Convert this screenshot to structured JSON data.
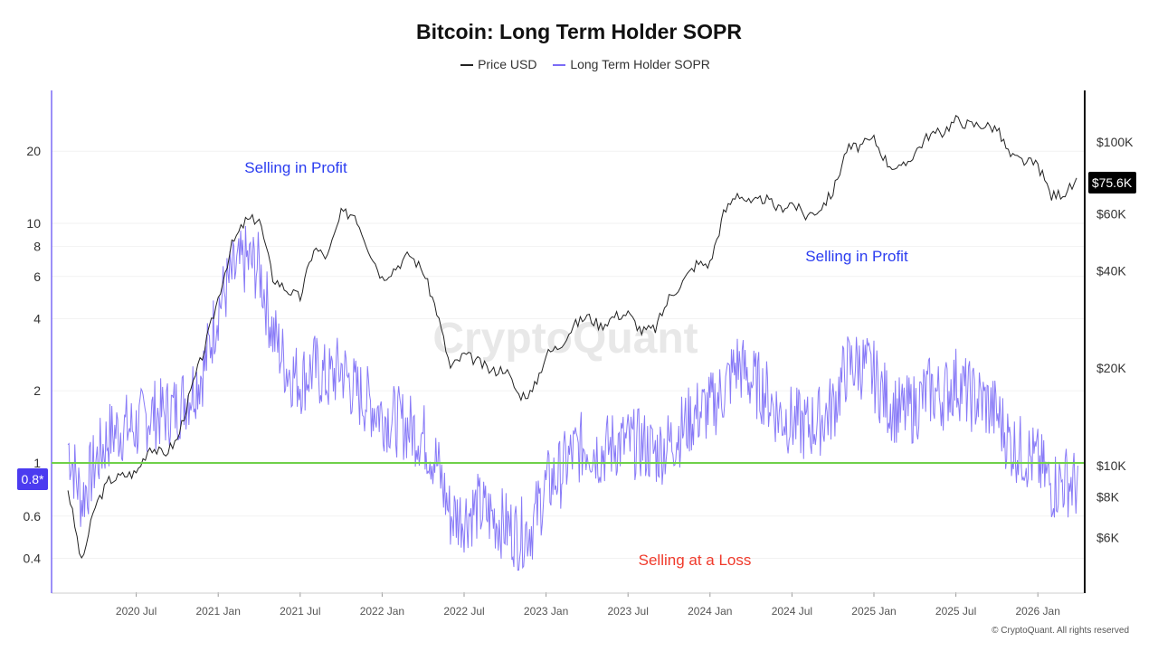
{
  "chart_data": {
    "type": "line",
    "title": "Bitcoin: Long Term Holder SOPR",
    "legend": [
      {
        "name": "Price USD",
        "color": "#222222"
      },
      {
        "name": "Long Term Holder SOPR",
        "color": "#7b6cf6"
      }
    ],
    "legend_placement": "top",
    "x_start": "2020-02",
    "x_step": "month",
    "x_ticks": [
      "2020 Jul",
      "2021 Jan",
      "2021 Jul",
      "2022 Jan",
      "2022 Jul",
      "2023 Jan",
      "2023 Jul",
      "2024 Jan",
      "2024 Jul",
      "2025 Jan",
      "2025 Jul",
      "2026 Jan"
    ],
    "left_axis": {
      "scale": "log",
      "ticks": [
        0.4,
        0.6,
        1,
        2,
        4,
        6,
        8,
        10,
        20
      ],
      "range": [
        0.32,
        40
      ]
    },
    "right_axis": {
      "scale": "log",
      "ticks": [
        "$6K",
        "$8K",
        "$10K",
        "$20K",
        "$40K",
        "$60K",
        "$100K"
      ],
      "tick_values": [
        6000,
        8000,
        10000,
        20000,
        40000,
        60000,
        100000
      ]
    },
    "series": [
      {
        "name": "Price USD",
        "axis": "right",
        "values": [
          8500,
          5000,
          7500,
          9000,
          9300,
          9500,
          11500,
          10800,
          12000,
          17000,
          23000,
          33000,
          48000,
          57000,
          58000,
          38000,
          35000,
          33000,
          47000,
          44000,
          60000,
          60000,
          47000,
          38000,
          41000,
          45000,
          40000,
          30000,
          20000,
          22000,
          21000,
          19500,
          20000,
          16500,
          16800,
          22000,
          23500,
          27000,
          29000,
          27000,
          29000,
          29500,
          26000,
          26500,
          33000,
          37000,
          42000,
          42000,
          60000,
          70000,
          64000,
          67000,
          62000,
          65000,
          59000,
          62000,
          70000,
          95000,
          97000,
          102000,
          86000,
          82000,
          93000,
          105000,
          107000,
          117000,
          113000,
          113000,
          110000,
          90000,
          87000,
          85000,
          68000,
          70000,
          75600
        ]
      },
      {
        "name": "Long Term Holder SOPR",
        "axis": "left",
        "values": [
          1.2,
          0.7,
          1.0,
          1.3,
          1.4,
          1.4,
          1.6,
          1.6,
          1.7,
          2.0,
          2.5,
          4.5,
          6,
          7,
          6.5,
          3.5,
          2.5,
          2.2,
          2.5,
          2.2,
          2.5,
          2.0,
          1.8,
          1.6,
          1.5,
          1.4,
          1.3,
          1.0,
          0.6,
          0.6,
          0.65,
          0.6,
          0.55,
          0.5,
          0.55,
          0.8,
          0.9,
          1.1,
          1.2,
          1.1,
          1.2,
          1.2,
          1.2,
          1.1,
          1.2,
          1.4,
          1.6,
          1.7,
          2.0,
          2.6,
          2.2,
          2.0,
          1.6,
          1.5,
          1.4,
          1.5,
          1.7,
          2.5,
          2.6,
          2.3,
          1.8,
          1.6,
          1.7,
          2.0,
          1.9,
          2.2,
          1.9,
          1.8,
          1.6,
          1.2,
          1.1,
          1.0,
          0.8,
          0.85,
          0.8
        ]
      }
    ],
    "reference_line": {
      "value": 1,
      "color": "#6fd04a"
    },
    "current_labels": {
      "price": "$75.6K",
      "sopr": "0.8*"
    },
    "annotations": [
      {
        "text": "Selling in Profit",
        "color": "#2b3df0"
      },
      {
        "text": "Selling in Profit",
        "color": "#2b3df0"
      },
      {
        "text": "Selling at a Loss",
        "color": "#f03a2b"
      }
    ],
    "watermark": "CryptoQuant"
  },
  "footer": "© CryptoQuant. All rights reserved"
}
